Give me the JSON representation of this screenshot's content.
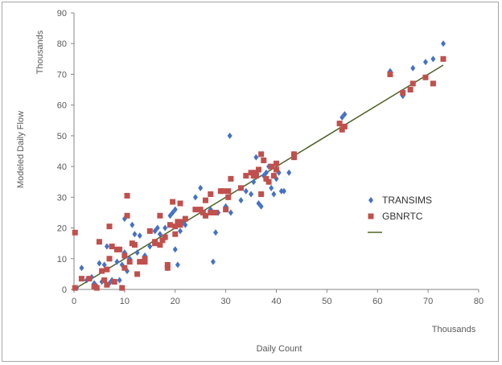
{
  "chart_data": {
    "type": "scatter",
    "title": "",
    "xlabel": "Daily Count",
    "ylabel": "Modeled Daily Flow",
    "x_units": "Thousands",
    "y_units": "Thousands",
    "xlim": [
      0,
      80
    ],
    "ylim": [
      0,
      90
    ],
    "x_ticks": [
      0,
      10,
      20,
      30,
      40,
      50,
      60,
      70,
      80
    ],
    "y_ticks": [
      0,
      10,
      20,
      30,
      40,
      50,
      60,
      70,
      80,
      90
    ],
    "grid": false,
    "legend_position": "right",
    "series": [
      {
        "name": "TRANSIMS",
        "color": "#4472c4",
        "marker": "diamond",
        "points": [
          [
            0.5,
            0.5
          ],
          [
            1.5,
            7
          ],
          [
            2.5,
            3
          ],
          [
            3.5,
            4
          ],
          [
            4,
            2
          ],
          [
            4.5,
            1
          ],
          [
            5,
            8.5
          ],
          [
            5.5,
            2.5
          ],
          [
            6,
            8
          ],
          [
            6.5,
            14
          ],
          [
            7,
            2
          ],
          [
            7.5,
            3
          ],
          [
            8,
            2.5
          ],
          [
            8.5,
            9
          ],
          [
            9,
            3
          ],
          [
            9.5,
            8
          ],
          [
            10,
            12
          ],
          [
            10,
            23
          ],
          [
            10.5,
            6
          ],
          [
            11,
            10
          ],
          [
            11.5,
            21
          ],
          [
            12,
            18
          ],
          [
            12.5,
            12
          ],
          [
            13,
            17.5
          ],
          [
            14,
            11
          ],
          [
            15,
            14
          ],
          [
            16,
            19
          ],
          [
            16.5,
            20
          ],
          [
            17,
            18
          ],
          [
            18,
            20
          ],
          [
            18.5,
            7
          ],
          [
            19,
            24
          ],
          [
            19.5,
            25
          ],
          [
            20,
            26
          ],
          [
            20,
            13
          ],
          [
            20.5,
            8
          ],
          [
            21,
            19
          ],
          [
            21.5,
            22
          ],
          [
            22,
            21
          ],
          [
            24,
            30
          ],
          [
            25,
            33
          ],
          [
            25.5,
            25
          ],
          [
            26,
            24
          ],
          [
            27,
            26
          ],
          [
            27.5,
            9
          ],
          [
            28,
            18.5
          ],
          [
            28.5,
            25
          ],
          [
            30,
            27
          ],
          [
            30.5,
            30
          ],
          [
            31,
            25
          ],
          [
            30.8,
            50
          ],
          [
            33,
            29
          ],
          [
            34,
            32
          ],
          [
            35,
            31
          ],
          [
            35.5,
            35
          ],
          [
            36,
            43
          ],
          [
            36.5,
            28
          ],
          [
            37,
            27
          ],
          [
            37.5,
            37
          ],
          [
            38,
            38
          ],
          [
            38.5,
            40
          ],
          [
            39,
            33
          ],
          [
            39.5,
            31
          ],
          [
            40,
            36
          ],
          [
            40.5,
            38
          ],
          [
            41,
            32
          ],
          [
            41.5,
            32
          ],
          [
            42.5,
            38
          ],
          [
            43.5,
            44
          ],
          [
            52.5,
            54
          ],
          [
            53,
            56
          ],
          [
            53.5,
            57
          ],
          [
            62.5,
            71
          ],
          [
            65,
            63
          ],
          [
            65,
            64
          ],
          [
            67,
            72
          ],
          [
            69.5,
            74
          ],
          [
            71,
            75
          ],
          [
            73,
            80
          ]
        ]
      },
      {
        "name": "GBNRTC",
        "color": "#c0504d",
        "marker": "square",
        "points": [
          [
            0.2,
            18.5
          ],
          [
            0.2,
            0.5
          ],
          [
            1.5,
            3.5
          ],
          [
            3,
            3.5
          ],
          [
            4,
            1
          ],
          [
            4.5,
            0.5
          ],
          [
            5,
            15.5
          ],
          [
            5.5,
            6
          ],
          [
            6,
            3
          ],
          [
            6.5,
            1.5
          ],
          [
            6.5,
            6.5
          ],
          [
            7,
            10
          ],
          [
            7,
            20.5
          ],
          [
            7.5,
            14
          ],
          [
            8,
            2.5
          ],
          [
            8.5,
            13
          ],
          [
            9,
            13
          ],
          [
            9.5,
            0.5
          ],
          [
            10,
            7
          ],
          [
            10,
            11
          ],
          [
            10.5,
            24
          ],
          [
            10.5,
            30.5
          ],
          [
            11,
            9
          ],
          [
            11.5,
            15
          ],
          [
            12,
            14.5
          ],
          [
            12.5,
            5
          ],
          [
            13,
            9
          ],
          [
            14,
            10
          ],
          [
            14,
            9
          ],
          [
            15,
            19
          ],
          [
            16,
            15
          ],
          [
            16,
            15.5
          ],
          [
            17,
            24
          ],
          [
            17,
            14.5
          ],
          [
            17.5,
            16
          ],
          [
            18,
            17
          ],
          [
            18.5,
            7
          ],
          [
            18.5,
            8
          ],
          [
            19,
            21
          ],
          [
            19.5,
            28.5
          ],
          [
            20,
            18
          ],
          [
            20,
            20.5
          ],
          [
            20.5,
            22
          ],
          [
            21,
            22
          ],
          [
            21,
            28
          ],
          [
            21,
            21
          ],
          [
            22,
            23
          ],
          [
            24,
            26
          ],
          [
            25,
            26
          ],
          [
            25.5,
            25
          ],
          [
            26,
            24
          ],
          [
            26,
            29
          ],
          [
            27,
            25
          ],
          [
            27,
            31
          ],
          [
            28,
            25
          ],
          [
            29,
            32
          ],
          [
            29.5,
            32
          ],
          [
            30,
            26
          ],
          [
            30.5,
            30
          ],
          [
            30.5,
            32
          ],
          [
            31,
            36
          ],
          [
            33,
            33
          ],
          [
            34,
            37
          ],
          [
            35,
            38
          ],
          [
            35.5,
            37
          ],
          [
            36,
            37
          ],
          [
            36,
            38
          ],
          [
            36.5,
            39
          ],
          [
            37,
            31
          ],
          [
            37,
            44
          ],
          [
            37.5,
            42
          ],
          [
            38,
            36
          ],
          [
            38.5,
            35
          ],
          [
            39,
            40
          ],
          [
            39.5,
            37
          ],
          [
            40,
            39
          ],
          [
            40,
            41
          ],
          [
            43.5,
            43
          ],
          [
            43.5,
            44
          ],
          [
            52.5,
            54
          ],
          [
            53,
            52
          ],
          [
            53.5,
            53
          ],
          [
            62.5,
            70
          ],
          [
            65,
            64
          ],
          [
            66.5,
            65
          ],
          [
            67,
            67
          ],
          [
            69.5,
            69
          ],
          [
            71,
            67
          ],
          [
            73,
            75
          ]
        ]
      },
      {
        "name": "",
        "type": "line",
        "color": "#4f6228",
        "points": [
          [
            0,
            0
          ],
          [
            73,
            73
          ]
        ]
      }
    ]
  }
}
